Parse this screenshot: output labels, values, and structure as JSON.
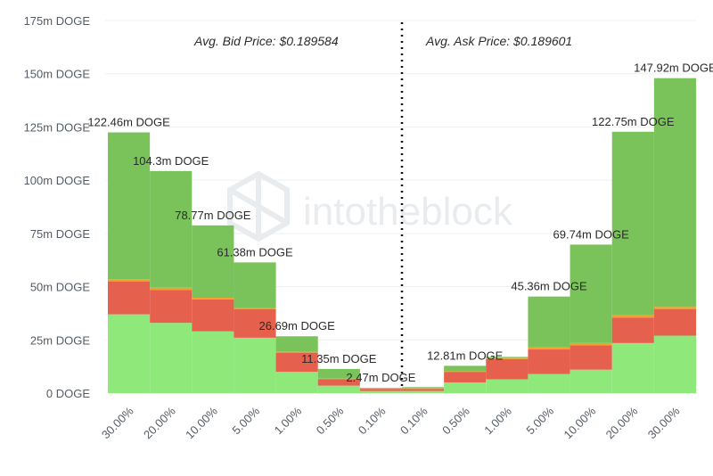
{
  "chart_data": {
    "type": "bar",
    "stacked": true,
    "categories": [
      "30.00%",
      "20.00%",
      "10.00%",
      "5.00%",
      "1.00%",
      "0.50%",
      "0.10%",
      "0.10%",
      "0.50%",
      "1.00%",
      "5.00%",
      "10.00%",
      "20.00%",
      "30.00%"
    ],
    "series": [
      {
        "color": "#8ee87a",
        "values": [
          37,
          33,
          29,
          26,
          10,
          3.5,
          1,
          1,
          5,
          6.5,
          9,
          11,
          23.5,
          27
        ]
      },
      {
        "color": "#e6604e",
        "values": [
          15.5,
          15.5,
          15,
          13.5,
          9,
          3,
          1,
          1,
          5,
          9.5,
          11.5,
          11.5,
          12,
          12.5
        ]
      },
      {
        "color": "#f2a22c",
        "values": [
          1,
          1,
          0.8,
          0.7,
          0.4,
          0.3,
          0.2,
          0.2,
          0.3,
          0.4,
          1,
          1,
          1,
          1
        ]
      },
      {
        "color": "#7ac35a",
        "values": [
          68.96,
          54.8,
          33.97,
          21.18,
          7.29,
          4.55,
          0.27,
          0.61,
          2.51,
          0.6,
          23.86,
          46.24,
          86.25,
          107.42
        ]
      }
    ],
    "totals": [
      122.46,
      104.3,
      78.77,
      61.38,
      26.69,
      11.35,
      2.47,
      2.81,
      12.81,
      17.0,
      45.36,
      69.74,
      122.75,
      147.92
    ],
    "data_labels": [
      "122.46m DOGE",
      "104.3m DOGE",
      "78.77m DOGE",
      "61.38m DOGE",
      "26.69m DOGE",
      "11.35m DOGE",
      "2.47m DOGE",
      "",
      "12.81m DOGE",
      "",
      "45.36m DOGE",
      "69.74m DOGE",
      "122.75m DOGE",
      "147.92m DOGE"
    ],
    "y_ticks": [
      "0 DOGE",
      "25m DOGE",
      "50m DOGE",
      "75m DOGE",
      "100m DOGE",
      "125m DOGE",
      "150m DOGE",
      "175m DOGE"
    ],
    "ylim": [
      0,
      175
    ],
    "grid": true,
    "annotations": {
      "bid": "Avg. Bid Price: $0.189584",
      "ask": "Avg. Ask Price: $0.189601"
    },
    "watermark": "intotheblock"
  }
}
